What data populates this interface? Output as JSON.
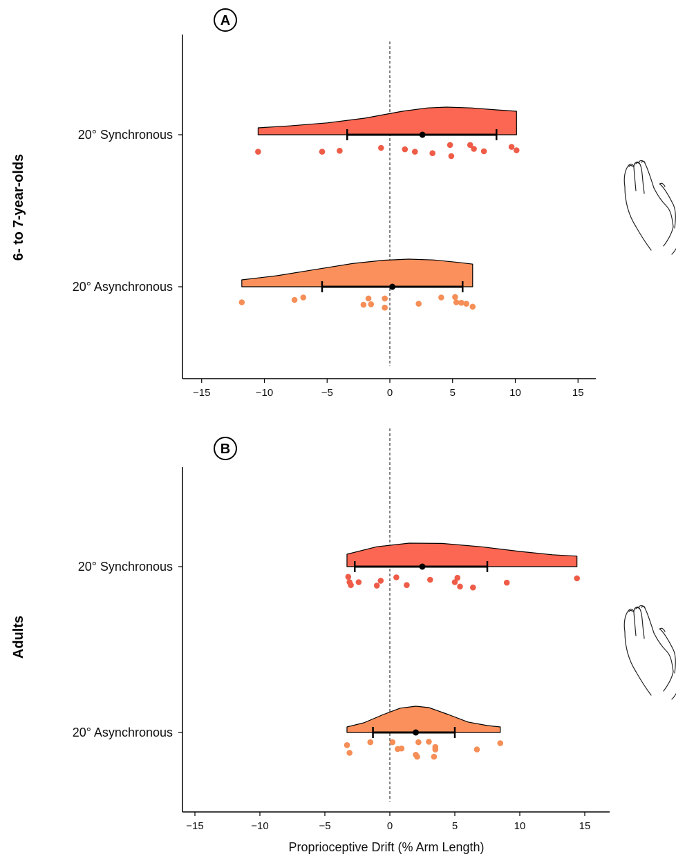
{
  "colors": {
    "synchronous": "#FB6752",
    "asynchronous": "#FC905C",
    "synchronous_dot": "#EE5C48",
    "asynchronous_dot": "#F58E57"
  },
  "icons": [
    "hand-icon-6to7",
    "hand-icon-adults"
  ],
  "chart_data": [
    {
      "type": "raincloud",
      "panel_label": "A",
      "row_label": "6- to 7-year-olds",
      "xlabel": "",
      "ylabel": "",
      "xlim": [
        -16.5,
        16.5
      ],
      "xticks": [
        -15,
        -10,
        -5,
        0,
        5,
        10,
        15
      ],
      "xtick_labels": [
        "−15",
        "−10",
        "−5",
        "0",
        "5",
        "10",
        "15"
      ],
      "reference_line_x": 0,
      "series": [
        {
          "name": "20° Synchronous",
          "color_key": "synchronous",
          "mean": 2.6,
          "ci": [
            -3.4,
            8.5
          ],
          "range": [
            -10.5,
            10.1
          ],
          "density": [
            [
              -10.5,
              0.25
            ],
            [
              -8,
              0.32
            ],
            [
              -5,
              0.43
            ],
            [
              -2,
              0.6
            ],
            [
              1,
              0.85
            ],
            [
              3,
              0.97
            ],
            [
              4.5,
              1.0
            ],
            [
              6.5,
              0.97
            ],
            [
              8.5,
              0.9
            ],
            [
              10.1,
              0.85
            ]
          ],
          "points": [
            [
              -10.5,
              0.18
            ],
            [
              -5.4,
              0.18
            ],
            [
              -4.0,
              0.16
            ],
            [
              -0.7,
              0.1
            ],
            [
              1.2,
              0.13
            ],
            [
              2.0,
              0.18
            ],
            [
              3.4,
              0.21
            ],
            [
              4.8,
              0.04
            ],
            [
              4.9,
              0.27
            ],
            [
              6.4,
              0.04
            ],
            [
              6.7,
              0.12
            ],
            [
              7.5,
              0.17
            ],
            [
              9.7,
              0.08
            ],
            [
              10.1,
              0.15
            ]
          ]
        },
        {
          "name": "20° Asynchronous",
          "color_key": "asynchronous",
          "mean": 0.2,
          "ci": [
            -5.4,
            5.8
          ],
          "range": [
            -11.8,
            6.6
          ],
          "density": [
            [
              -11.8,
              0.25
            ],
            [
              -9,
              0.4
            ],
            [
              -6,
              0.62
            ],
            [
              -3,
              0.84
            ],
            [
              -0.5,
              0.96
            ],
            [
              1.5,
              1.0
            ],
            [
              3.5,
              0.97
            ],
            [
              5.5,
              0.88
            ],
            [
              6.6,
              0.82
            ]
          ],
          "points": [
            [
              -11.8,
              0.15
            ],
            [
              -7.6,
              0.1
            ],
            [
              -6.9,
              0.05
            ],
            [
              -2.1,
              0.2
            ],
            [
              -1.5,
              0.19
            ],
            [
              -1.7,
              0.07
            ],
            [
              -0.4,
              0.07
            ],
            [
              -0.4,
              0.26
            ],
            [
              2.3,
              0.18
            ],
            [
              4.1,
              0.05
            ],
            [
              5.2,
              0.04
            ],
            [
              5.3,
              0.15
            ],
            [
              5.7,
              0.16
            ],
            [
              6.1,
              0.18
            ],
            [
              6.6,
              0.24
            ]
          ]
        }
      ]
    },
    {
      "type": "raincloud",
      "panel_label": "B",
      "row_label": "Adults",
      "xlabel": "Proprioceptive Drift (% Arm Length)",
      "ylabel": "",
      "xlim": [
        -16.5,
        17.5
      ],
      "xticks": [
        -15,
        -10,
        -5,
        0,
        5,
        10,
        15
      ],
      "xtick_labels": [
        "−15",
        "−10",
        "−5",
        "0",
        "5",
        "10",
        "15"
      ],
      "reference_line_x": 0,
      "series": [
        {
          "name": "20° Synchronous",
          "color_key": "synchronous",
          "mean": 2.5,
          "ci": [
            -2.7,
            7.5
          ],
          "range": [
            -3.3,
            14.4
          ],
          "density": [
            [
              -3.3,
              0.45
            ],
            [
              -1,
              0.72
            ],
            [
              1.5,
              0.85
            ],
            [
              4,
              0.84
            ],
            [
              7,
              0.72
            ],
            [
              10,
              0.55
            ],
            [
              12.5,
              0.43
            ],
            [
              14.4,
              0.38
            ]
          ],
          "points": [
            [
              -3.2,
              0.04
            ],
            [
              -3.1,
              0.15
            ],
            [
              -3.0,
              0.21
            ],
            [
              -2.4,
              0.15
            ],
            [
              -1.0,
              0.22
            ],
            [
              -0.7,
              0.12
            ],
            [
              0.5,
              0.05
            ],
            [
              1.3,
              0.21
            ],
            [
              3.1,
              0.1
            ],
            [
              5.0,
              0.15
            ],
            [
              5.2,
              0.06
            ],
            [
              5.4,
              0.24
            ],
            [
              6.4,
              0.26
            ],
            [
              9.0,
              0.16
            ],
            [
              14.4,
              0.07
            ]
          ]
        },
        {
          "name": "20° Asynchronous",
          "color_key": "asynchronous",
          "mean": 2.0,
          "ci": [
            -1.3,
            5.0
          ],
          "range": [
            -3.3,
            8.5
          ],
          "density": [
            [
              -3.3,
              0.2
            ],
            [
              -2,
              0.35
            ],
            [
              -0.5,
              0.65
            ],
            [
              0.8,
              0.88
            ],
            [
              2,
              0.95
            ],
            [
              3,
              0.9
            ],
            [
              4.5,
              0.65
            ],
            [
              6,
              0.38
            ],
            [
              7.5,
              0.25
            ],
            [
              8.5,
              0.2
            ]
          ],
          "points": [
            [
              -3.3,
              0.09
            ],
            [
              -3.1,
              0.25
            ],
            [
              -1.5,
              0.03
            ],
            [
              0.2,
              0.03
            ],
            [
              0.6,
              0.17
            ],
            [
              0.9,
              0.16
            ],
            [
              2.0,
              0.29
            ],
            [
              2.1,
              0.33
            ],
            [
              2.2,
              0.03
            ],
            [
              3.0,
              0.02
            ],
            [
              3.5,
              0.13
            ],
            [
              3.5,
              0.18
            ],
            [
              3.4,
              0.33
            ],
            [
              6.7,
              0.18
            ],
            [
              8.5,
              0.05
            ]
          ]
        }
      ]
    }
  ]
}
